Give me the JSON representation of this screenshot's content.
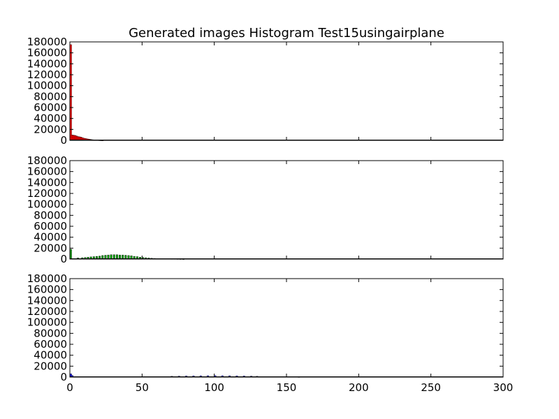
{
  "chart_data": {
    "type": "bar",
    "title": "Generated images Histogram Test15usingairplane",
    "xlabel": "",
    "ylabel": "",
    "xlim": [
      0,
      300
    ],
    "ylim": [
      0,
      180000
    ],
    "x_ticks": [
      0,
      50,
      100,
      150,
      200,
      250,
      300
    ],
    "y_ticks": [
      0,
      20000,
      40000,
      60000,
      80000,
      100000,
      120000,
      140000,
      160000,
      180000
    ],
    "grid": false,
    "legend": "none",
    "panels": [
      {
        "name": "",
        "color": "#ff0000",
        "bins": [
          {
            "x": 0,
            "value": 175000
          },
          {
            "x": 1,
            "value": 10000
          },
          {
            "x": 2,
            "value": 9500
          },
          {
            "x": 3,
            "value": 9000
          },
          {
            "x": 4,
            "value": 8000
          },
          {
            "x": 5,
            "value": 7000
          },
          {
            "x": 6,
            "value": 6500
          },
          {
            "x": 7,
            "value": 6000
          },
          {
            "x": 8,
            "value": 5000
          },
          {
            "x": 9,
            "value": 4000
          },
          {
            "x": 10,
            "value": 3500
          },
          {
            "x": 11,
            "value": 3000
          },
          {
            "x": 12,
            "value": 2500
          },
          {
            "x": 13,
            "value": 2000
          },
          {
            "x": 14,
            "value": 1500
          },
          {
            "x": 15,
            "value": 1200
          },
          {
            "x": 16,
            "value": 1000
          },
          {
            "x": 17,
            "value": 900
          },
          {
            "x": 18,
            "value": 800
          },
          {
            "x": 19,
            "value": 700
          },
          {
            "x": 20,
            "value": 500
          },
          {
            "x": 21,
            "value": 400
          },
          {
            "x": 22,
            "value": 300
          }
        ]
      },
      {
        "name": "",
        "color": "#00a000",
        "bins": [
          {
            "x": 0,
            "value": 18000
          },
          {
            "x": 5,
            "value": 2000
          },
          {
            "x": 8,
            "value": 2500
          },
          {
            "x": 10,
            "value": 3000
          },
          {
            "x": 12,
            "value": 3500
          },
          {
            "x": 14,
            "value": 4000
          },
          {
            "x": 16,
            "value": 4500
          },
          {
            "x": 18,
            "value": 5000
          },
          {
            "x": 20,
            "value": 5500
          },
          {
            "x": 22,
            "value": 6500
          },
          {
            "x": 24,
            "value": 7000
          },
          {
            "x": 26,
            "value": 7500
          },
          {
            "x": 28,
            "value": 8000
          },
          {
            "x": 30,
            "value": 8000
          },
          {
            "x": 32,
            "value": 8000
          },
          {
            "x": 34,
            "value": 7500
          },
          {
            "x": 36,
            "value": 7500
          },
          {
            "x": 38,
            "value": 7000
          },
          {
            "x": 40,
            "value": 6500
          },
          {
            "x": 42,
            "value": 6000
          },
          {
            "x": 44,
            "value": 5000
          },
          {
            "x": 46,
            "value": 4500
          },
          {
            "x": 48,
            "value": 3500
          },
          {
            "x": 50,
            "value": 3000
          },
          {
            "x": 52,
            "value": 2500
          },
          {
            "x": 54,
            "value": 2000
          },
          {
            "x": 56,
            "value": 1500
          },
          {
            "x": 58,
            "value": 1200
          },
          {
            "x": 60,
            "value": 1000
          },
          {
            "x": 62,
            "value": 900
          },
          {
            "x": 64,
            "value": 800
          },
          {
            "x": 66,
            "value": 700
          },
          {
            "x": 68,
            "value": 700
          },
          {
            "x": 70,
            "value": 600
          },
          {
            "x": 72,
            "value": 600
          },
          {
            "x": 74,
            "value": 500
          },
          {
            "x": 76,
            "value": 400
          },
          {
            "x": 78,
            "value": 300
          }
        ]
      },
      {
        "name": "",
        "color": "#0000ff",
        "bins": [
          {
            "x": 0,
            "value": 6000
          },
          {
            "x": 1,
            "value": 3000
          },
          {
            "x": 15,
            "value": 900
          },
          {
            "x": 20,
            "value": 900
          },
          {
            "x": 25,
            "value": 900
          },
          {
            "x": 30,
            "value": 900
          },
          {
            "x": 37,
            "value": 900
          },
          {
            "x": 45,
            "value": 900
          },
          {
            "x": 55,
            "value": 900
          },
          {
            "x": 65,
            "value": 900
          },
          {
            "x": 70,
            "value": 1500
          },
          {
            "x": 75,
            "value": 1800
          },
          {
            "x": 80,
            "value": 2000
          },
          {
            "x": 85,
            "value": 2200
          },
          {
            "x": 90,
            "value": 2400
          },
          {
            "x": 95,
            "value": 2500
          },
          {
            "x": 100,
            "value": 2600
          },
          {
            "x": 105,
            "value": 2500
          },
          {
            "x": 110,
            "value": 2400
          },
          {
            "x": 115,
            "value": 2200
          },
          {
            "x": 120,
            "value": 2000
          },
          {
            "x": 125,
            "value": 1800
          },
          {
            "x": 129,
            "value": 1500
          },
          {
            "x": 135,
            "value": 900
          },
          {
            "x": 140,
            "value": 900
          },
          {
            "x": 145,
            "value": 900
          },
          {
            "x": 150,
            "value": 900
          },
          {
            "x": 155,
            "value": 800
          },
          {
            "x": 158,
            "value": 500
          }
        ]
      }
    ]
  }
}
